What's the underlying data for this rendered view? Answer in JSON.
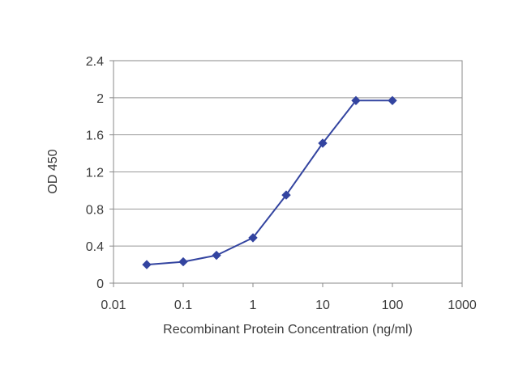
{
  "chart_data": {
    "type": "line",
    "xlabel": "Recombinant Protein Concentration (ng/ml)",
    "ylabel": "OD 450",
    "x_scale": "log",
    "xlim": [
      0.01,
      1000
    ],
    "ylim": [
      0,
      2.4
    ],
    "x_ticks": [
      {
        "value": 0.01,
        "label": "0.01"
      },
      {
        "value": 0.1,
        "label": "0.1"
      },
      {
        "value": 1,
        "label": "1"
      },
      {
        "value": 10,
        "label": "10"
      },
      {
        "value": 100,
        "label": "100"
      },
      {
        "value": 1000,
        "label": "1000"
      }
    ],
    "y_ticks": [
      {
        "value": 0,
        "label": "0"
      },
      {
        "value": 0.4,
        "label": "0.4"
      },
      {
        "value": 0.8,
        "label": "0.8"
      },
      {
        "value": 1.2,
        "label": "1.2"
      },
      {
        "value": 1.6,
        "label": "1.6"
      },
      {
        "value": 2.0,
        "label": "2"
      },
      {
        "value": 2.4,
        "label": "2.4"
      }
    ],
    "grid": "horizontal",
    "legend": "none",
    "series": [
      {
        "color": "#3344a0",
        "marker": "diamond",
        "points": [
          {
            "x": 0.03,
            "y": 0.2
          },
          {
            "x": 0.1,
            "y": 0.23
          },
          {
            "x": 0.3,
            "y": 0.3
          },
          {
            "x": 1,
            "y": 0.49
          },
          {
            "x": 3,
            "y": 0.95
          },
          {
            "x": 10,
            "y": 1.51
          },
          {
            "x": 30,
            "y": 1.97
          },
          {
            "x": 100,
            "y": 1.97
          }
        ]
      }
    ],
    "colors": {
      "line": "#3344a0",
      "grid": "#999999",
      "axis": "#888888",
      "text": "#3a3a3a"
    }
  }
}
